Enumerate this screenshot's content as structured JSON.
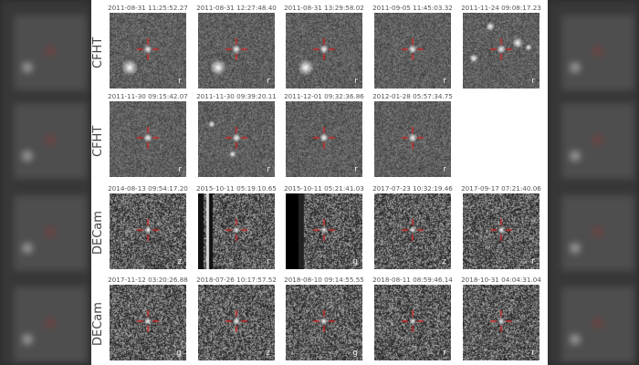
{
  "rows": [
    {
      "instrument": "CFHT",
      "panels": [
        {
          "timestamp": "2011-08-31 11:25:52.27",
          "filter": "r"
        },
        {
          "timestamp": "2011-08-31 12:27:48.40",
          "filter": "r"
        },
        {
          "timestamp": "2011-08-31 13:29:58.02",
          "filter": "r"
        },
        {
          "timestamp": "2011-09-05 11:45:03.32",
          "filter": "r"
        },
        {
          "timestamp": "2011-11-24 09:08:17.23",
          "filter": "r"
        }
      ]
    },
    {
      "instrument": "CFHT",
      "panels": [
        {
          "timestamp": "2011-11-30 09:15:42.07",
          "filter": "r"
        },
        {
          "timestamp": "2011-11-30 09:39:20.11",
          "filter": "r"
        },
        {
          "timestamp": "2011-12-01 09:32:36.86",
          "filter": "r"
        },
        {
          "timestamp": "2012-01-28 05:57:34.75",
          "filter": "r"
        }
      ]
    },
    {
      "instrument": "DECam",
      "panels": [
        {
          "timestamp": "2014-08-13 09:54:17.20",
          "filter": "z"
        },
        {
          "timestamp": "2015-10-11 05:19:10.65",
          "filter": "r"
        },
        {
          "timestamp": "2015-10-11 05:21:41.03",
          "filter": "g"
        },
        {
          "timestamp": "2017-07-23 10:32:19.46",
          "filter": "z"
        },
        {
          "timestamp": "2017-09-17 07:21:40.06",
          "filter": "r"
        }
      ]
    },
    {
      "instrument": "DECam",
      "panels": [
        {
          "timestamp": "2017-11-12 03:20:26.88",
          "filter": "g"
        },
        {
          "timestamp": "2018-07-26 10:17:57.52",
          "filter": "z"
        },
        {
          "timestamp": "2018-08-10 09:14:55.55",
          "filter": "g"
        },
        {
          "timestamp": "2018-08-11 08:59:46.14",
          "filter": "r"
        },
        {
          "timestamp": "2018-10-31 04:04:31.04",
          "filter": "r"
        }
      ]
    }
  ],
  "colors": {
    "marker": "#e02020",
    "background_noise": "#4a4a4a"
  }
}
